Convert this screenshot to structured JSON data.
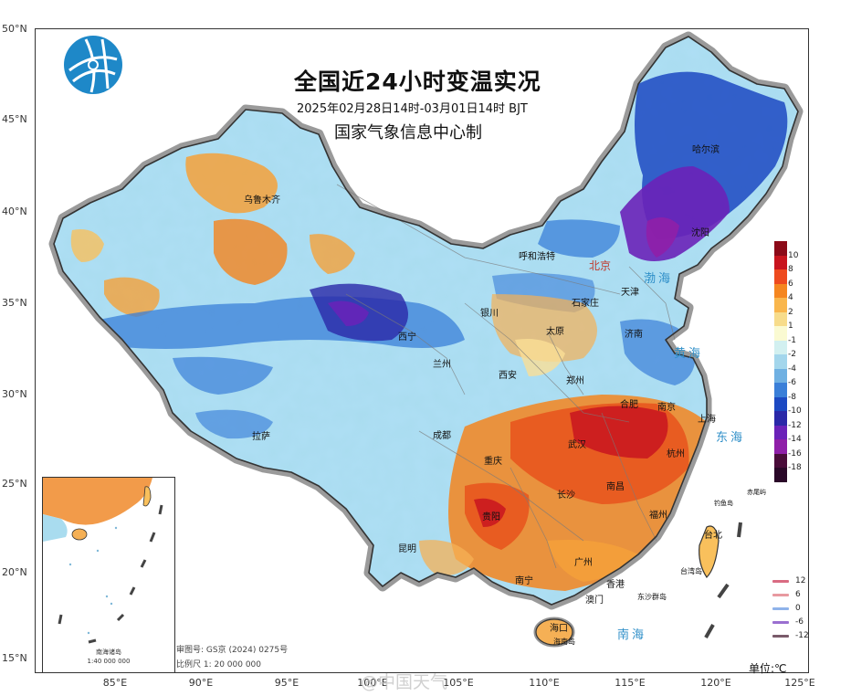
{
  "header": {
    "title": "全国近24小时变温实况",
    "subtitle": "2025年02月28日14时-03月01日14时 BJT",
    "producer": "国家气象信息中心制"
  },
  "axes": {
    "latitudes": [
      "50°N",
      "45°N",
      "40°N",
      "35°N",
      "30°N",
      "25°N",
      "20°N",
      "15°N"
    ],
    "longitudes": [
      "85°E",
      "90°E",
      "95°E",
      "100°E",
      "105°E",
      "110°E",
      "115°E",
      "120°E",
      "125°E"
    ]
  },
  "legend": {
    "unit": "单位:℃",
    "labels": [
      "10",
      "8",
      "6",
      "4",
      "2",
      "1",
      "-1",
      "-2",
      "-4",
      "-6",
      "-8",
      "-10",
      "-12",
      "-14",
      "-16",
      "-18"
    ],
    "colors": [
      "#8c0a18",
      "#c8141e",
      "#ee4a1e",
      "#f5861f",
      "#f9b64c",
      "#f7dc8b",
      "#fafad2",
      "#d2f0f0",
      "#a3d6ec",
      "#6fb0e2",
      "#3a7fd8",
      "#1c49c2",
      "#2a28a8",
      "#6a22b8",
      "#8f1fa8",
      "#4a0c3a",
      "#2a0828"
    ],
    "contour_lines": [
      {
        "label": "12",
        "color": "#d96b82"
      },
      {
        "label": "6",
        "color": "#e89aa0"
      },
      {
        "label": "0",
        "color": "#8fb3ea"
      },
      {
        "label": "-6",
        "color": "#9a6fd0"
      },
      {
        "label": "-12",
        "color": "#7a5a6a"
      }
    ]
  },
  "cities": {
    "urumqi": "乌鲁木齐",
    "hohhot": "呼和浩特",
    "beijing": "北京",
    "tianjin": "天津",
    "harbin": "哈尔滨",
    "shenyang": "沈阳",
    "yinchuan": "银川",
    "shijiazhuang": "石家庄",
    "taiyuan": "太原",
    "jinan": "济南",
    "xining": "西宁",
    "lanzhou": "兰州",
    "xian": "西安",
    "zhengzhou": "郑州",
    "hefei": "合肥",
    "nanjing": "南京",
    "shanghai": "上海",
    "wuhan": "武汉",
    "hangzhou": "杭州",
    "lhasa": "拉萨",
    "chengdu": "成都",
    "chongqing": "重庆",
    "nanchang": "南昌",
    "changsha": "长沙",
    "guiyang": "贵阳",
    "fuzhou": "福州",
    "taipei": "台北",
    "kunming": "昆明",
    "guangzhou": "广州",
    "nanning": "南宁",
    "hongkong": "香港",
    "macao": "澳门",
    "haikou": "海口",
    "hainan": "海南岛",
    "taiwan": "台湾岛",
    "diaoyu": "钓鱼岛",
    "chiwei": "赤尾屿",
    "dongsha": "东沙群岛"
  },
  "seas": {
    "bohai": "渤海",
    "yellow": "黄海",
    "east": "东海",
    "south": "南海"
  },
  "inset": {
    "title": "南海诸岛",
    "scale": "1:40 000 000"
  },
  "footer": {
    "review": "审图号: GS京 (2024) 0275号",
    "scale": "比例尺 1: 20 000 000",
    "watermark": "@中国天气"
  }
}
